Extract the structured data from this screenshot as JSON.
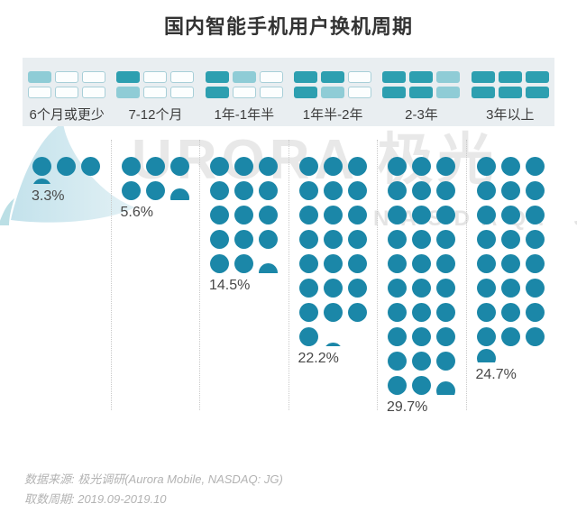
{
  "title": "国内智能手机用户换机周期",
  "watermark": {
    "brand_text": "URORA 极光",
    "ticker": "NASDAQ: JG"
  },
  "footer": {
    "source": "数据来源: 极光调研(Aurora Mobile, NASDAQ: JG)",
    "period": "取数周期: 2019.09-2019.10"
  },
  "colors": {
    "dot": "#1b87a8",
    "icon_dark": "#2d9fb0",
    "icon_light": "#8fccd6",
    "icon_border": "#a8cfd8",
    "band_bg": "#e9eef1",
    "separator": "#c9c9c9",
    "swoosh_light": "#cde7ee",
    "swoosh_dark": "#9ed2da"
  },
  "chart_data": {
    "type": "pictogram-dot",
    "title": "国内智能手机用户换机周期",
    "unit": "1 dot = 1%",
    "dots_per_row": 3,
    "categories": [
      "6个月或更少",
      "7-12个月",
      "1年-1年半",
      "1年半-2年",
      "2-3年",
      "3年以上"
    ],
    "values": [
      3.3,
      5.6,
      14.5,
      22.2,
      29.7,
      24.7
    ],
    "labels": [
      "3.3%",
      "5.6%",
      "14.5%",
      "22.2%",
      "29.7%",
      "24.7%"
    ],
    "icon_grids": [
      [
        [
          "light",
          "empty",
          "empty"
        ],
        [
          "empty",
          "empty",
          "empty"
        ]
      ],
      [
        [
          "dark",
          "empty",
          "empty"
        ],
        [
          "light",
          "empty",
          "empty"
        ]
      ],
      [
        [
          "dark",
          "light",
          "empty"
        ],
        [
          "dark",
          "empty",
          "empty"
        ]
      ],
      [
        [
          "dark",
          "dark",
          "empty"
        ],
        [
          "dark",
          "light",
          "empty"
        ]
      ],
      [
        [
          "dark",
          "dark",
          "light"
        ],
        [
          "dark",
          "dark",
          "light"
        ]
      ],
      [
        [
          "dark",
          "dark",
          "dark"
        ],
        [
          "dark",
          "dark",
          "dark"
        ]
      ]
    ],
    "legend_meaning": "each rectangle = 6 months, dark = full, light = partial"
  }
}
